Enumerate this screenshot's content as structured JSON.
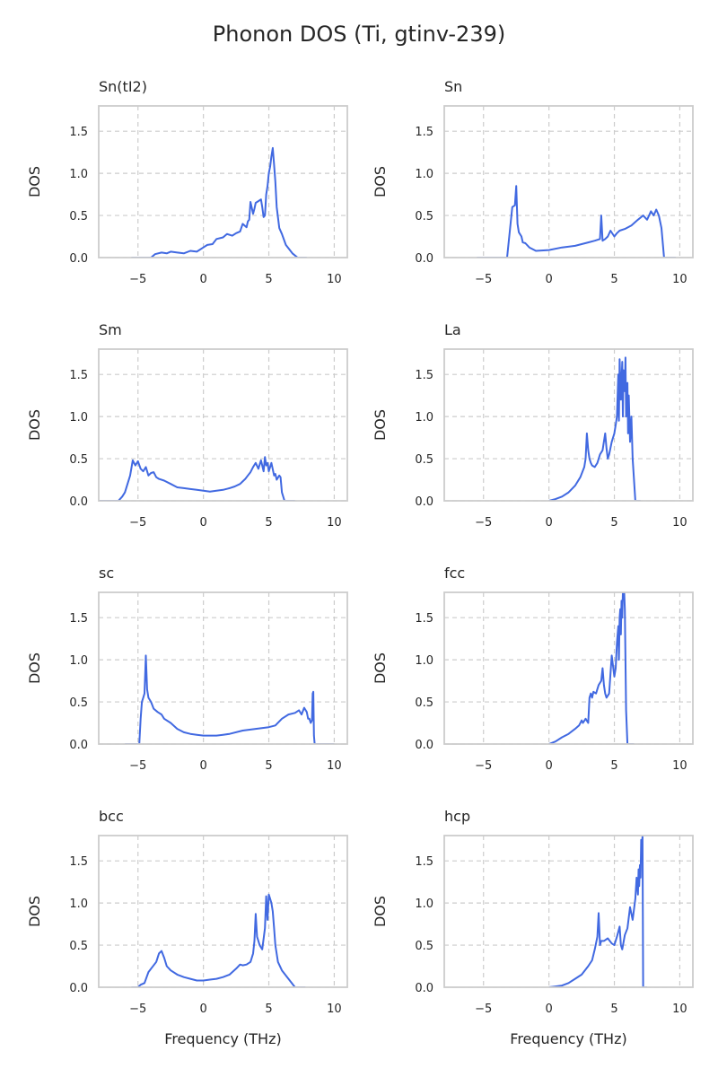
{
  "chart_data": {
    "title": "Phonon DOS (Ti, gtinv-239)",
    "type": "line",
    "layout": "4 rows x 2 columns of subplots",
    "shared_axes": {
      "xlim": [
        -8,
        11
      ],
      "ylim": [
        0,
        1.8
      ],
      "xticks": [
        -5,
        0,
        5,
        10
      ],
      "yticks": [
        0.0,
        0.5,
        1.0,
        1.5
      ],
      "ytick_labels": [
        "0.0",
        "0.5",
        "1.0",
        "1.5"
      ],
      "ylabel": "DOS",
      "xlabel": "Frequency (THz)",
      "grid": true,
      "grid_style": "dashed",
      "line_color": "#4169e1"
    },
    "panels": [
      {
        "title": "Sn(tI2)",
        "x": [
          -5.5,
          -4,
          -3.7,
          -3.2,
          -2.8,
          -2.5,
          -2,
          -1.5,
          -1,
          -0.5,
          0,
          0.3,
          0.7,
          1,
          1.5,
          1.8,
          2.2,
          2.5,
          2.8,
          3,
          3.3,
          3.4,
          3.5,
          3.6,
          3.8,
          3.9,
          4,
          4.2,
          4.4,
          4.5,
          4.6,
          4.7,
          4.8,
          4.9,
          5,
          5.1,
          5.2,
          5.3,
          5.4,
          5.5,
          5.6,
          5.8,
          6,
          6.3,
          6.8,
          7.2,
          7.9
        ],
        "y": [
          0,
          0,
          0.04,
          0.06,
          0.05,
          0.07,
          0.06,
          0.05,
          0.08,
          0.07,
          0.12,
          0.15,
          0.16,
          0.22,
          0.24,
          0.28,
          0.26,
          0.29,
          0.31,
          0.4,
          0.36,
          0.43,
          0.45,
          0.66,
          0.52,
          0.58,
          0.65,
          0.67,
          0.69,
          0.6,
          0.48,
          0.5,
          0.75,
          0.85,
          1.0,
          1.08,
          1.2,
          1.3,
          1.1,
          0.9,
          0.6,
          0.35,
          0.28,
          0.15,
          0.05,
          0,
          0
        ]
      },
      {
        "title": "Sn",
        "x": [
          -5.5,
          -3.2,
          -3,
          -2.8,
          -2.6,
          -2.5,
          -2.4,
          -2.3,
          -2.1,
          -2,
          -1.8,
          -1.5,
          -1,
          0,
          1,
          2,
          3,
          3.5,
          3.9,
          4,
          4.1,
          4.3,
          4.5,
          4.7,
          5,
          5.2,
          5.4,
          5.8,
          6.3,
          6.8,
          7.2,
          7.5,
          7.8,
          8,
          8.2,
          8.4,
          8.6,
          8.8,
          9.2,
          9.7
        ],
        "y": [
          0,
          0,
          0.3,
          0.6,
          0.62,
          0.85,
          0.4,
          0.3,
          0.25,
          0.18,
          0.17,
          0.12,
          0.08,
          0.09,
          0.12,
          0.14,
          0.18,
          0.2,
          0.22,
          0.5,
          0.2,
          0.22,
          0.25,
          0.32,
          0.25,
          0.29,
          0.32,
          0.34,
          0.38,
          0.45,
          0.5,
          0.45,
          0.55,
          0.5,
          0.57,
          0.5,
          0.35,
          0,
          0,
          0
        ]
      },
      {
        "title": "Sm",
        "x": [
          -8,
          -6.5,
          -6.2,
          -6,
          -5.8,
          -5.6,
          -5.4,
          -5.2,
          -5,
          -4.8,
          -4.6,
          -4.4,
          -4.2,
          -4,
          -3.8,
          -3.6,
          -3.4,
          -3,
          -2.5,
          -2,
          -1.5,
          -1,
          -0.5,
          0,
          0.5,
          1,
          1.5,
          2,
          2.4,
          2.8,
          3,
          3.2,
          3.4,
          3.6,
          3.8,
          4,
          4.2,
          4.4,
          4.6,
          4.7,
          4.8,
          4.9,
          5,
          5.2,
          5.4,
          5.5,
          5.6,
          5.8,
          5.9,
          6,
          6.2,
          6.5,
          7
        ],
        "y": [
          0,
          0,
          0.05,
          0.1,
          0.2,
          0.3,
          0.48,
          0.42,
          0.47,
          0.38,
          0.35,
          0.4,
          0.3,
          0.33,
          0.34,
          0.28,
          0.26,
          0.24,
          0.2,
          0.16,
          0.15,
          0.14,
          0.13,
          0.12,
          0.11,
          0.12,
          0.13,
          0.15,
          0.17,
          0.2,
          0.23,
          0.26,
          0.3,
          0.34,
          0.4,
          0.45,
          0.38,
          0.48,
          0.35,
          0.52,
          0.42,
          0.45,
          0.35,
          0.45,
          0.3,
          0.32,
          0.25,
          0.3,
          0.28,
          0.1,
          0,
          0,
          0
        ]
      },
      {
        "title": "La",
        "x": [
          0,
          0.5,
          1,
          1.5,
          2,
          2.4,
          2.7,
          2.8,
          2.9,
          3,
          3.1,
          3.2,
          3.3,
          3.5,
          3.7,
          3.9,
          4.1,
          4.3,
          4.4,
          4.5,
          4.6,
          4.8,
          5,
          5.1,
          5.2,
          5.3,
          5.35,
          5.4,
          5.5,
          5.6,
          5.65,
          5.7,
          5.8,
          5.85,
          5.9,
          6,
          6.05,
          6.1,
          6.2,
          6.3,
          6.4,
          6.6,
          7
        ],
        "y": [
          0,
          0.02,
          0.05,
          0.1,
          0.18,
          0.28,
          0.4,
          0.5,
          0.8,
          0.6,
          0.5,
          0.45,
          0.42,
          0.4,
          0.45,
          0.55,
          0.6,
          0.8,
          0.62,
          0.5,
          0.55,
          0.7,
          0.8,
          0.9,
          1.0,
          1.5,
          0.95,
          1.68,
          1.2,
          1.65,
          1.0,
          1.55,
          1.3,
          1.7,
          1.0,
          1.4,
          0.8,
          1.25,
          0.7,
          1.0,
          0.5,
          0,
          0
        ]
      },
      {
        "title": "sc",
        "x": [
          -6,
          -4.9,
          -4.8,
          -4.7,
          -4.6,
          -4.5,
          -4.4,
          -4.3,
          -4.2,
          -4,
          -3.8,
          -3.5,
          -3.2,
          -3,
          -2.5,
          -2,
          -1.5,
          -1,
          -0.5,
          0,
          0.5,
          1,
          1.5,
          2,
          3,
          4,
          5,
          5.5,
          6,
          6.5,
          7,
          7.3,
          7.5,
          7.7,
          7.9,
          8,
          8.1,
          8.2,
          8.3,
          8.35,
          8.4,
          8.45,
          8.5,
          8.6,
          9,
          10
        ],
        "y": [
          0,
          0,
          0.3,
          0.5,
          0.55,
          0.6,
          1.05,
          0.65,
          0.55,
          0.5,
          0.42,
          0.38,
          0.35,
          0.3,
          0.25,
          0.18,
          0.14,
          0.12,
          0.11,
          0.1,
          0.1,
          0.1,
          0.11,
          0.12,
          0.16,
          0.18,
          0.2,
          0.22,
          0.3,
          0.35,
          0.37,
          0.4,
          0.35,
          0.43,
          0.38,
          0.3,
          0.3,
          0.25,
          0.28,
          0.6,
          0.62,
          0.1,
          0,
          0,
          0,
          0
        ]
      },
      {
        "title": "fcc",
        "x": [
          0,
          0.5,
          1,
          1.5,
          2,
          2.3,
          2.5,
          2.6,
          2.8,
          3,
          3.1,
          3.2,
          3.3,
          3.4,
          3.6,
          3.8,
          4,
          4.1,
          4.2,
          4.3,
          4.4,
          4.6,
          4.8,
          5,
          5.1,
          5.2,
          5.3,
          5.35,
          5.4,
          5.45,
          5.5,
          5.55,
          5.6,
          5.65,
          5.7,
          5.75,
          5.8,
          5.85,
          5.9,
          6,
          6.5
        ],
        "y": [
          0,
          0.03,
          0.08,
          0.12,
          0.18,
          0.22,
          0.28,
          0.25,
          0.3,
          0.25,
          0.55,
          0.6,
          0.55,
          0.62,
          0.6,
          0.7,
          0.75,
          0.9,
          0.7,
          0.6,
          0.55,
          0.6,
          1.05,
          0.8,
          0.9,
          1.2,
          1.4,
          1.0,
          1.5,
          1.6,
          1.3,
          1.7,
          1.5,
          1.8,
          1.8,
          1.8,
          1.6,
          1.0,
          0.4,
          0,
          0
        ]
      },
      {
        "title": "bcc",
        "x": [
          -5.5,
          -5,
          -4.8,
          -4.5,
          -4.2,
          -4,
          -3.6,
          -3.4,
          -3.2,
          -3,
          -2.8,
          -2.5,
          -2,
          -1.5,
          -1,
          -0.5,
          0,
          0.5,
          1,
          1.5,
          2,
          2.5,
          2.8,
          3,
          3.3,
          3.6,
          3.8,
          3.9,
          4,
          4.1,
          4.2,
          4.3,
          4.5,
          4.7,
          4.8,
          4.9,
          5,
          5.1,
          5.2,
          5.3,
          5.4,
          5.5,
          5.7,
          6,
          6.5,
          7,
          7.8
        ],
        "y": [
          0,
          0,
          0.03,
          0.05,
          0.18,
          0.22,
          0.3,
          0.4,
          0.43,
          0.35,
          0.25,
          0.2,
          0.15,
          0.12,
          0.1,
          0.08,
          0.08,
          0.09,
          0.1,
          0.12,
          0.15,
          0.22,
          0.27,
          0.26,
          0.27,
          0.3,
          0.4,
          0.55,
          0.87,
          0.6,
          0.55,
          0.5,
          0.45,
          0.7,
          1.08,
          0.8,
          1.1,
          1.05,
          1.0,
          0.9,
          0.7,
          0.5,
          0.3,
          0.2,
          0.1,
          0,
          0
        ]
      },
      {
        "title": "hcp",
        "x": [
          0,
          0.5,
          1,
          1.5,
          2,
          2.5,
          3,
          3.3,
          3.5,
          3.7,
          3.8,
          3.9,
          4,
          4.2,
          4.5,
          4.8,
          5,
          5.2,
          5.4,
          5.5,
          5.6,
          5.8,
          6,
          6.2,
          6.4,
          6.6,
          6.7,
          6.8,
          6.85,
          6.9,
          6.95,
          7,
          7.05,
          7.1,
          7.15,
          7.2,
          7.3,
          7.5
        ],
        "y": [
          0,
          0.01,
          0.02,
          0.05,
          0.1,
          0.15,
          0.25,
          0.32,
          0.45,
          0.6,
          0.88,
          0.5,
          0.55,
          0.55,
          0.58,
          0.52,
          0.5,
          0.6,
          0.72,
          0.5,
          0.45,
          0.62,
          0.7,
          0.95,
          0.8,
          1.05,
          1.3,
          1.1,
          1.4,
          1.2,
          1.45,
          1.3,
          1.75,
          1.6,
          1.8,
          0,
          0,
          0
        ]
      }
    ]
  }
}
